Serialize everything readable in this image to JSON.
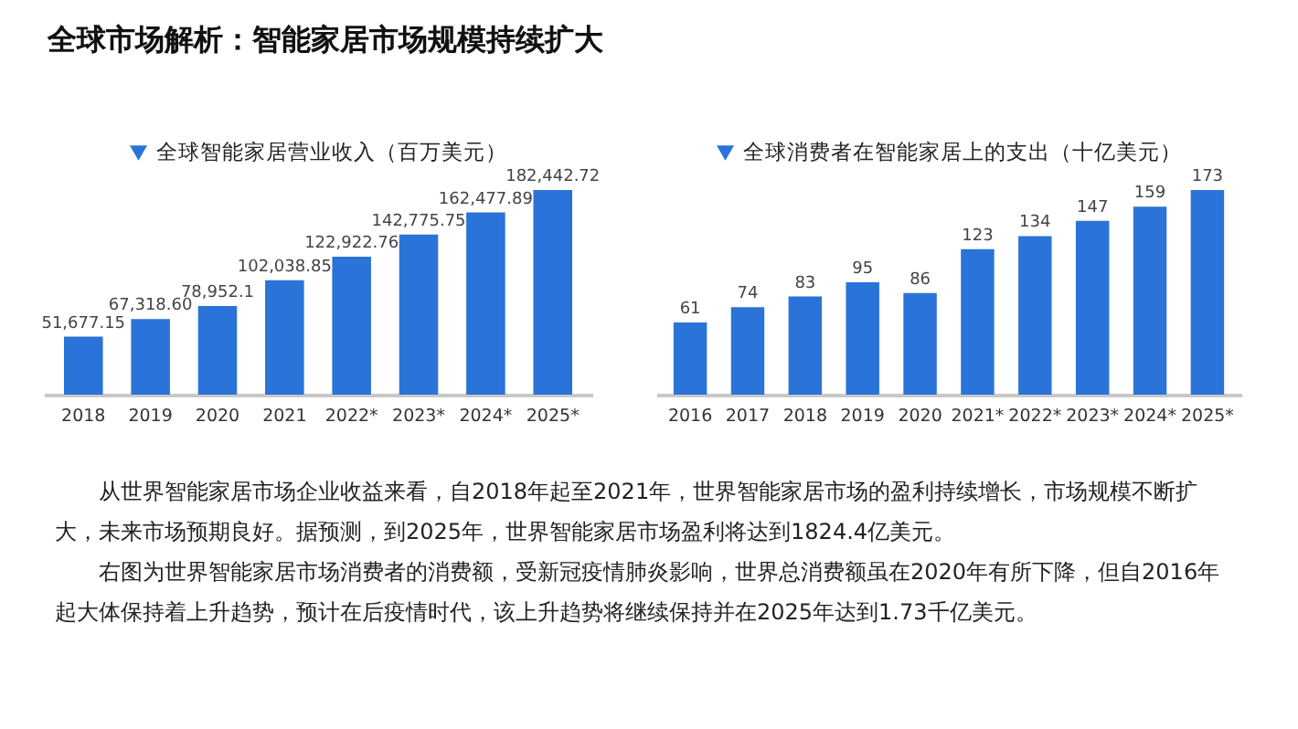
{
  "chart_data": [
    {
      "type": "bar",
      "title": "全球市场解析：智能家居市场规模持续扩大",
      "legend": "top",
      "categories": [
        "2018",
        "2019",
        "2020",
        "2021",
        "2022*",
        "2023*",
        "2024*",
        "2025*"
      ],
      "series": [
        {
          "name": "全球智能家居营业收入（百万美元）",
          "color": "#2a73d8",
          "values": [
            51677.15,
            67318.6,
            78952.1,
            102038.85,
            122922.76,
            142775.75,
            162477.89,
            182442.72
          ],
          "value_labels": [
            "51,677.15",
            "67,318.60",
            "78,952.1",
            "102,038.85",
            "122,922.76",
            "142,775.75",
            "162,477.89",
            "182,442.72"
          ]
        }
      ]
    },
    {
      "type": "bar",
      "legend": "top",
      "data_labels": true,
      "categories": [
        "2016",
        "2017",
        "2018",
        "2019",
        "2020",
        "2021*",
        "2022*",
        "2023*",
        "2024*",
        "2025*"
      ],
      "series": [
        {
          "name": "全球消费者在智能家居上的支出（十亿美元）",
          "color": "#2a73d8",
          "values": [
            61,
            74,
            83,
            95,
            86,
            123,
            134,
            147,
            159,
            173
          ]
        }
      ]
    },
    {
      "type": "other",
      "annotations": [
        "从世界智能家居市场企业收益来看，自2018年起至2021年，世界智能家居市场的盈利持续增长，市场规模不断扩大，未来市场预期良好。据预测，到2025年，世界智能家居市场盈利将达到1824.4亿美元。",
        "右图为世界智能家居市场消费者的消费额，受新冠疫情肺炎影响，世界总消费额虽在2020年有所下降，但自2016年起大体保持着上升趋势，预计在后疫情时代，该上升趋势将继续保持并在2025年达到1.73千亿美元。"
      ]
    }
  ]
}
